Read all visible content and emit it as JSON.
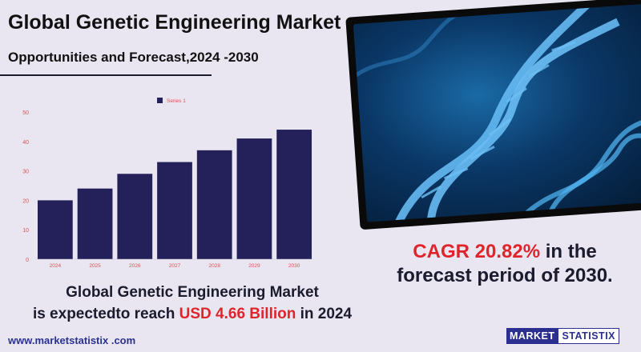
{
  "header": {
    "title": "Global Genetic Engineering Market",
    "subtitle": "Opportunities and Forecast,2024 -2030"
  },
  "chart_data": {
    "type": "bar",
    "categories": [
      "2024",
      "2025",
      "2026",
      "2027",
      "2028",
      "2029",
      "2030"
    ],
    "series": [
      {
        "name": "Series 1",
        "values": [
          20,
          24,
          29,
          33,
          37,
          41,
          44
        ]
      }
    ],
    "ylim": [
      0,
      50
    ],
    "yticks": [
      0,
      10,
      20,
      30,
      40,
      50
    ],
    "legend": "top-center",
    "grid": false,
    "bar_color": "#23205a"
  },
  "cagr": {
    "highlight": "CAGR 20.82%",
    "rest_line1": " in the",
    "line2": "forecast period of 2030."
  },
  "summary": {
    "line1": "Global Genetic Engineering Market",
    "line2_prefix": "is expectedto reach ",
    "line2_highlight": "USD 4.66  Billion",
    "line2_suffix": " in 2024"
  },
  "footer": {
    "url": "www.marketstatistix .com",
    "logo_left": "MARKET",
    "logo_right": "STATISTIX"
  },
  "colors": {
    "accent_red": "#e0242b",
    "navy": "#23205a",
    "background": "#e9e6f1"
  }
}
